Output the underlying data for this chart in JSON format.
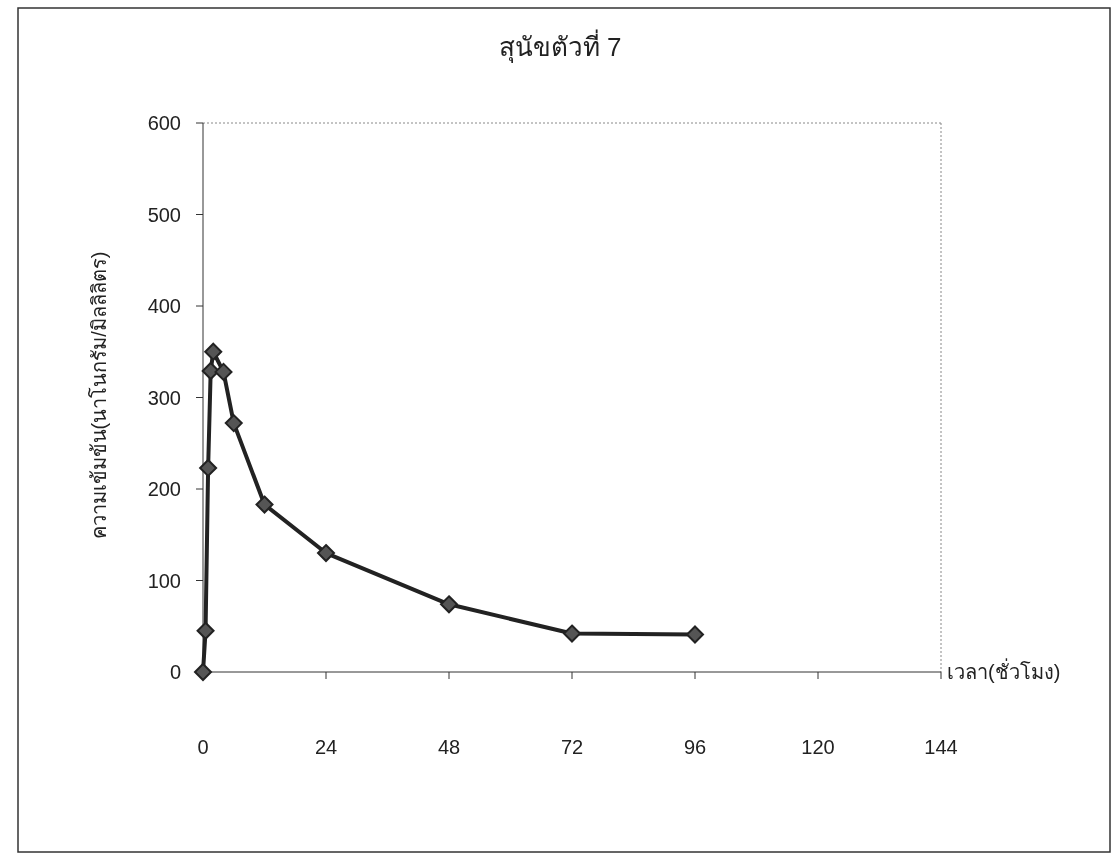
{
  "chart_data": {
    "type": "line",
    "title": "สุนัขตัวที่ 7",
    "xlabel": "เวลา(ชั่วโมง)",
    "ylabel": "ความเข้มข้น(นาโนกรัม/มิลลิลิตร)",
    "x": [
      0,
      0.5,
      1,
      1.5,
      2,
      4,
      6,
      12,
      24,
      48,
      72,
      96
    ],
    "values": [
      0,
      45,
      223,
      329,
      350,
      328,
      272,
      183,
      130,
      74,
      42,
      41
    ],
    "color": "#222222",
    "marker": "diamond",
    "line_style": "solid",
    "xlim": [
      0,
      144
    ],
    "xticks": [
      0,
      24,
      48,
      72,
      96,
      120,
      144
    ],
    "ylim": [
      0,
      600
    ],
    "yticks": [
      0,
      100,
      200,
      300,
      400,
      500,
      600
    ]
  }
}
